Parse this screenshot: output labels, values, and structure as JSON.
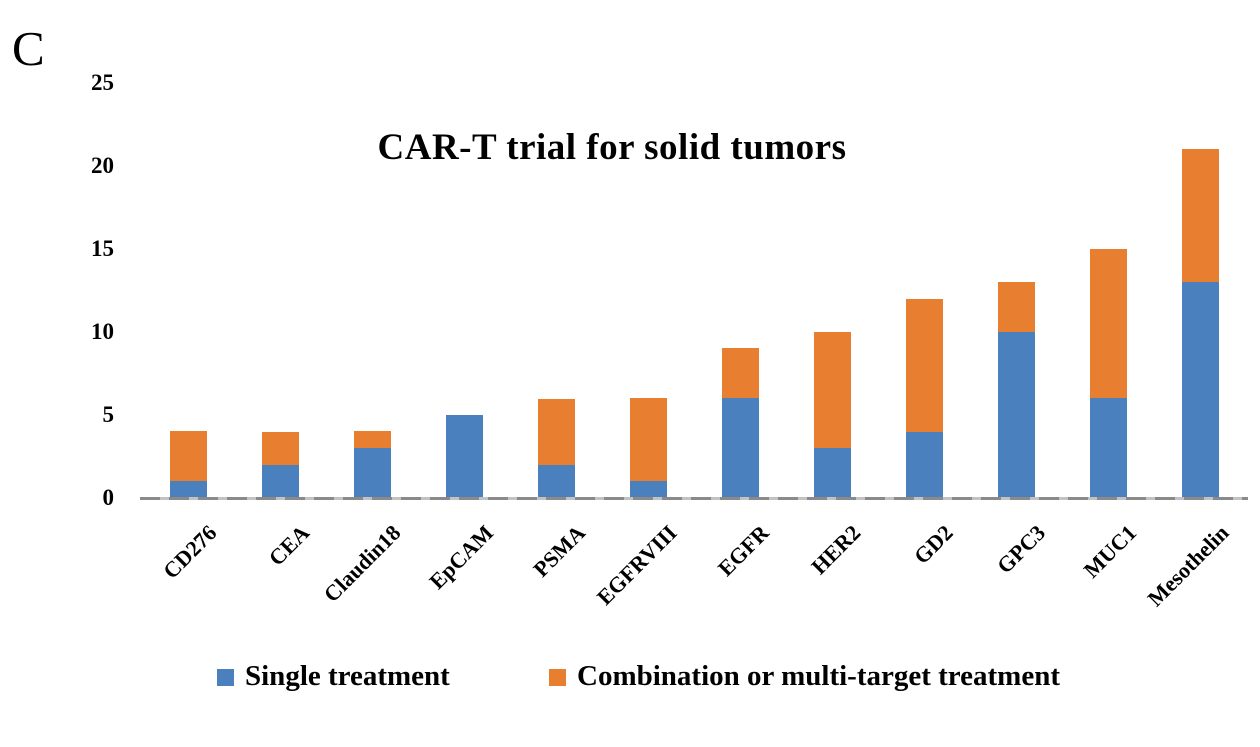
{
  "panel_label": "C",
  "chart_data": {
    "type": "bar",
    "stacked": true,
    "title": "CAR-T trial for solid tumors",
    "categories": [
      "CD276",
      "CEA",
      "Claudin18",
      "EpCAM",
      "PSMA",
      "EGFRVIII",
      "EGFR",
      "HER2",
      "GD2",
      "GPC3",
      "MUC1",
      "Mesothelin"
    ],
    "series": [
      {
        "name": "Single treatment",
        "color": "#4A80BD",
        "values": [
          1,
          2,
          3,
          5,
          2,
          1,
          6,
          3,
          4,
          10,
          6,
          13
        ]
      },
      {
        "name": "Combination or multi-target treatment",
        "color": "#E87E30",
        "values": [
          3,
          2,
          1,
          0,
          4,
          5,
          3,
          7,
          8,
          3,
          9,
          8
        ]
      }
    ],
    "y_ticks": [
      0,
      5,
      10,
      15,
      20,
      25
    ],
    "ylim": [
      0,
      25
    ],
    "xlabel": "",
    "ylabel": "",
    "grid": false,
    "legend_position": "bottom",
    "axis_color": "#8a8a8a",
    "background_color": "#ffffff"
  }
}
